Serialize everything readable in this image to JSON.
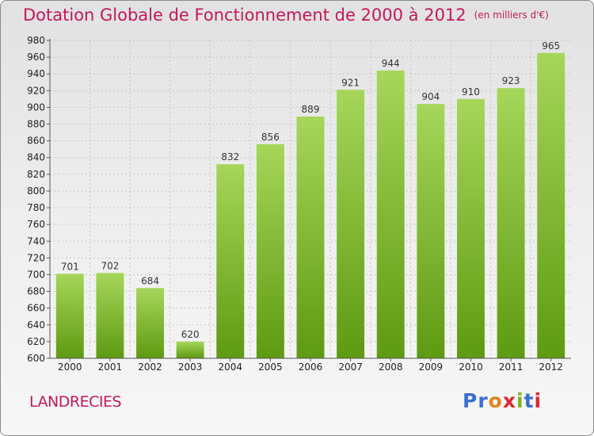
{
  "title": "Dotation Globale de Fonctionnement de 2000 à 2012",
  "unit_note": "(en milliers d'€)",
  "place": "LANDRECIES",
  "logo": {
    "text": "Proxiti",
    "letter_colors": [
      "#3b6fd1",
      "#3b6fd1",
      "#e2841e",
      "#e0262f",
      "#7ab51d",
      "#3b6fd1",
      "#e0262f"
    ]
  },
  "colors": {
    "bar_light": "#a6d65a",
    "bar_dark": "#5e9a12",
    "accent": "#c2185b"
  },
  "chart_data": {
    "type": "bar",
    "categories": [
      "2000",
      "2001",
      "2002",
      "2003",
      "2004",
      "2005",
      "2006",
      "2007",
      "2008",
      "2009",
      "2010",
      "2011",
      "2012"
    ],
    "values": [
      701,
      702,
      684,
      620,
      832,
      856,
      889,
      921,
      944,
      904,
      910,
      923,
      965
    ],
    "ylim": [
      600,
      980
    ],
    "yticks": [
      600,
      620,
      640,
      660,
      680,
      700,
      720,
      740,
      760,
      780,
      800,
      820,
      840,
      860,
      880,
      900,
      920,
      940,
      960,
      980
    ],
    "grid": true
  }
}
